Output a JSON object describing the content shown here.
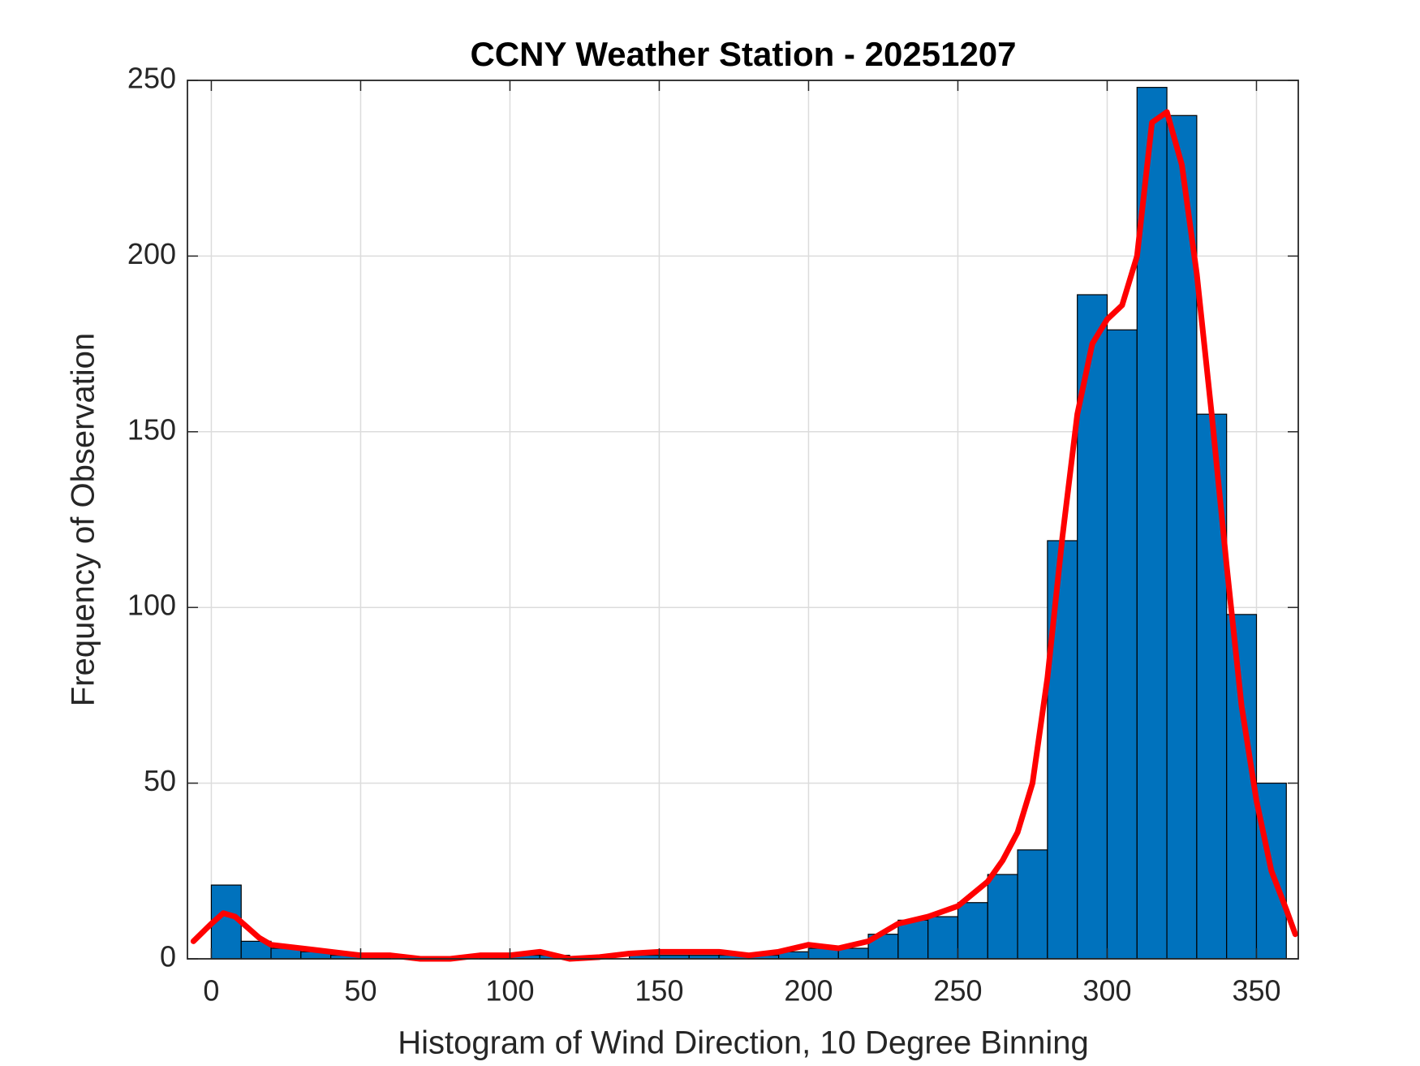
{
  "chart_data": {
    "type": "histogram",
    "title": "CCNY Weather Station - 20251207",
    "xlabel": "Histogram of Wind Direction, 10 Degree Binning",
    "ylabel": "Frequency of Observation",
    "bins": [
      0,
      10,
      20,
      30,
      40,
      50,
      60,
      70,
      80,
      90,
      100,
      110,
      120,
      130,
      140,
      150,
      160,
      170,
      180,
      190,
      200,
      210,
      220,
      230,
      240,
      250,
      260,
      270,
      280,
      290,
      300,
      310,
      320,
      330,
      340,
      350,
      360
    ],
    "counts": [
      21,
      5,
      3,
      2,
      1,
      1,
      0,
      0,
      0,
      1,
      1,
      1,
      0,
      0,
      1,
      1,
      1,
      1,
      1,
      2,
      3,
      3,
      7,
      11,
      12,
      16,
      24,
      31,
      119,
      189,
      179,
      248,
      240,
      155,
      98,
      50
    ],
    "color": "#0072bd",
    "edgecolor": "#000000",
    "overlay": {
      "type": "line",
      "color": "#ff0000",
      "x": [
        -6,
        0,
        4,
        8,
        12,
        16,
        20,
        30,
        40,
        50,
        60,
        70,
        80,
        90,
        100,
        110,
        120,
        130,
        140,
        150,
        160,
        170,
        180,
        190,
        200,
        210,
        220,
        230,
        240,
        250,
        260,
        265,
        270,
        275,
        280,
        285,
        290,
        295,
        300,
        305,
        310,
        315,
        320,
        325,
        330,
        335,
        340,
        345,
        350,
        355,
        360,
        363
      ],
      "values": [
        5,
        10,
        13,
        12,
        9,
        6,
        4,
        3,
        2,
        1,
        1,
        0,
        0,
        1,
        1,
        2,
        0,
        0.5,
        1.5,
        2,
        2,
        2,
        1,
        2,
        4,
        3,
        5,
        10,
        12,
        15,
        22,
        28,
        36,
        50,
        80,
        120,
        155,
        175,
        182,
        186,
        200,
        238,
        241,
        226,
        195,
        155,
        112,
        72,
        45,
        25,
        14,
        7
      ]
    },
    "xlim": [
      -8,
      364
    ],
    "ylim": [
      0,
      250
    ],
    "xticks": [
      0,
      50,
      100,
      150,
      200,
      250,
      300,
      350
    ],
    "yticks": [
      0,
      50,
      100,
      150,
      200,
      250
    ],
    "grid": true
  }
}
